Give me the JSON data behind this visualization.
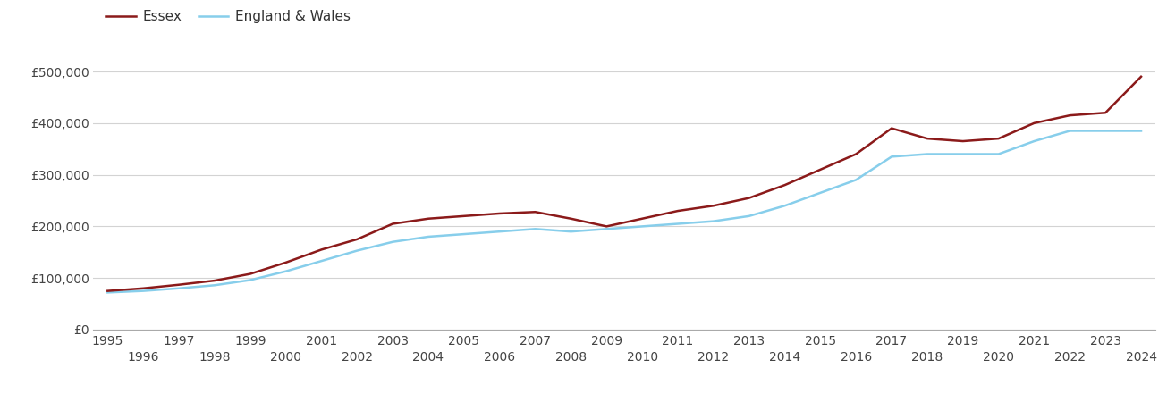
{
  "essex_years": [
    1995,
    1996,
    1997,
    1998,
    1999,
    2000,
    2001,
    2002,
    2003,
    2004,
    2005,
    2006,
    2007,
    2008,
    2009,
    2010,
    2011,
    2012,
    2013,
    2014,
    2015,
    2016,
    2017,
    2018,
    2019,
    2020,
    2021,
    2022,
    2023,
    2024
  ],
  "essex_values": [
    75000,
    80000,
    87000,
    95000,
    108000,
    130000,
    155000,
    175000,
    205000,
    215000,
    220000,
    225000,
    228000,
    215000,
    200000,
    215000,
    230000,
    240000,
    255000,
    280000,
    310000,
    340000,
    390000,
    370000,
    365000,
    370000,
    400000,
    415000,
    420000,
    490000
  ],
  "ew_years": [
    1995,
    1996,
    1997,
    1998,
    1999,
    2000,
    2001,
    2002,
    2003,
    2004,
    2005,
    2006,
    2007,
    2008,
    2009,
    2010,
    2011,
    2012,
    2013,
    2014,
    2015,
    2016,
    2017,
    2018,
    2019,
    2020,
    2021,
    2022,
    2023,
    2024
  ],
  "ew_values": [
    72000,
    75000,
    80000,
    86000,
    96000,
    113000,
    133000,
    153000,
    170000,
    180000,
    185000,
    190000,
    195000,
    190000,
    195000,
    200000,
    205000,
    210000,
    220000,
    240000,
    265000,
    290000,
    335000,
    340000,
    340000,
    340000,
    365000,
    385000,
    385000,
    385000
  ],
  "essex_color": "#8b1a1a",
  "ew_color": "#87ceeb",
  "background_color": "#ffffff",
  "grid_color": "#d3d3d3",
  "yticks": [
    0,
    100000,
    200000,
    300000,
    400000,
    500000
  ],
  "ytick_labels": [
    "£0",
    "£100,000",
    "£200,000",
    "£300,000",
    "£400,000",
    "£500,000"
  ],
  "xlim": [
    1994.6,
    2024.4
  ],
  "ylim": [
    0,
    545000
  ],
  "legend_labels": [
    "Essex",
    "England & Wales"
  ],
  "line_width": 1.8
}
